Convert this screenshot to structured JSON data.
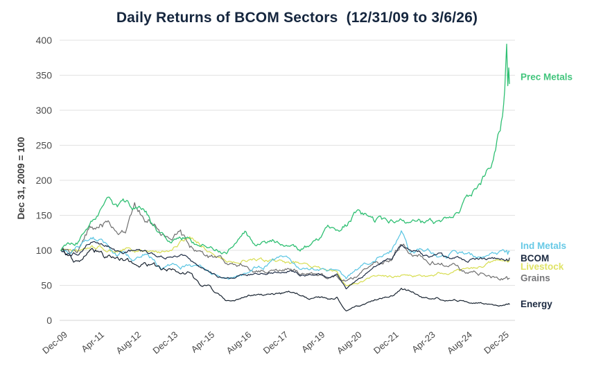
{
  "chart": {
    "title": "Daily Returns of BCOM Sectors  (12/31/09 to 3/6/26)",
    "ylabel": "Dec 31, 2009 = 100"
  },
  "chart_data": {
    "type": "line",
    "title": "Daily Returns of BCOM Sectors  (12/31/09 to 3/6/26)",
    "xlabel": "",
    "ylabel": "Dec 31, 2009 = 100",
    "ylim": [
      0,
      400
    ],
    "yticks": [
      0,
      50,
      100,
      150,
      200,
      250,
      300,
      350,
      400
    ],
    "grid": "horizontal-only",
    "legend_position": "right-edge-annotations",
    "xticklabels": [
      "Dec-09",
      "Apr-11",
      "Aug-12",
      "Dec-13",
      "Apr-15",
      "Aug-16",
      "Dec-17",
      "Apr-19",
      "Aug-20",
      "Dec-21",
      "Apr-23",
      "Aug-24",
      "Dec-25"
    ],
    "xtick_months": [
      0,
      16,
      32,
      48,
      64,
      80,
      96,
      112,
      128,
      144,
      160,
      176,
      192
    ],
    "x_months_since_dec09": [
      0,
      4,
      8,
      12,
      16,
      20,
      24,
      28,
      32,
      36,
      40,
      44,
      48,
      52,
      56,
      60,
      64,
      68,
      72,
      76,
      80,
      84,
      88,
      92,
      96,
      100,
      104,
      108,
      112,
      116,
      120,
      124,
      128,
      132,
      136,
      140,
      144,
      148,
      152,
      156,
      160,
      164,
      168,
      172,
      176,
      180,
      184,
      188,
      192,
      193,
      193.8,
      194.3,
      194.7,
      195
    ],
    "series": [
      {
        "id": "livestock",
        "name": "Livestock",
        "color": "#d7dd4f",
        "volatility": 0.018,
        "width": 1.2,
        "values": [
          100,
          102,
          98,
          103,
          105,
          100,
          99,
          102,
          97,
          99,
          96,
          98,
          103,
          110,
          117,
          112,
          100,
          92,
          85,
          84,
          87,
          86,
          84,
          85,
          83,
          81,
          82,
          78,
          75,
          70,
          72,
          50,
          52,
          56,
          62,
          64,
          62,
          65,
          64,
          62,
          63,
          67,
          64,
          70,
          72,
          75,
          78,
          84,
          88,
          87,
          88,
          86,
          87,
          86
        ]
      },
      {
        "id": "grains",
        "name": "Grains",
        "color": "#6e6e6e",
        "volatility": 0.026,
        "width": 1.2,
        "values": [
          100,
          92,
          100,
          130,
          136,
          138,
          124,
          122,
          163,
          150,
          138,
          122,
          115,
          127,
          100,
          98,
          92,
          88,
          78,
          76,
          82,
          70,
          72,
          70,
          70,
          74,
          66,
          66,
          64,
          62,
          66,
          58,
          62,
          74,
          84,
          82,
          90,
          112,
          100,
          96,
          88,
          82,
          78,
          76,
          68,
          67,
          66,
          61,
          60,
          60,
          61,
          59,
          60,
          60
        ]
      },
      {
        "id": "ind_metals",
        "name": "Ind Metals",
        "color": "#57c4e2",
        "volatility": 0.022,
        "width": 1.2,
        "values": [
          100,
          98,
          104,
          118,
          114,
          104,
          92,
          97,
          88,
          95,
          86,
          75,
          80,
          76,
          80,
          76,
          72,
          62,
          60,
          64,
          66,
          75,
          76,
          85,
          88,
          84,
          72,
          72,
          74,
          70,
          74,
          58,
          72,
          80,
          88,
          92,
          100,
          126,
          94,
          98,
          98,
          90,
          88,
          99,
          94,
          92,
          93,
          96,
          99,
          98,
          102,
          97,
          100,
          98
        ]
      },
      {
        "id": "bcom",
        "name": "BCOM",
        "color": "#1e2c45",
        "volatility": 0.016,
        "width": 1.2,
        "values": [
          100,
          94,
          97,
          110,
          114,
          106,
          99,
          97,
          100,
          97,
          94,
          90,
          90,
          93,
          88,
          76,
          72,
          64,
          60,
          62,
          66,
          67,
          66,
          68,
          70,
          71,
          65,
          64,
          66,
          61,
          64,
          45,
          55,
          64,
          78,
          84,
          90,
          108,
          98,
          96,
          90,
          93,
          88,
          90,
          86,
          87,
          88,
          87,
          90,
          89,
          91,
          88,
          89,
          89
        ]
      },
      {
        "id": "energy",
        "name": "Energy",
        "color": "#17222f",
        "volatility": 0.03,
        "width": 1.2,
        "values": [
          100,
          88,
          82,
          92,
          97,
          87,
          88,
          84,
          78,
          78,
          80,
          72,
          75,
          72,
          70,
          50,
          48,
          38,
          28,
          30,
          33,
          38,
          36,
          38,
          38,
          40,
          36,
          30,
          34,
          30,
          33,
          14,
          20,
          22,
          28,
          32,
          36,
          43,
          42,
          35,
          30,
          32,
          28,
          29,
          27,
          26,
          25,
          23,
          22,
          22,
          23,
          22,
          23,
          23
        ]
      },
      {
        "id": "prec_metals",
        "name": "Prec Metals",
        "color": "#2ebf72",
        "volatility": 0.02,
        "width": 1.3,
        "values": [
          100,
          108,
          112,
          132,
          148,
          185,
          160,
          165,
          160,
          164,
          135,
          122,
          112,
          120,
          118,
          108,
          108,
          100,
          95,
          112,
          124,
          108,
          112,
          114,
          112,
          110,
          100,
          107,
          112,
          128,
          130,
          138,
          155,
          148,
          140,
          142,
          143,
          152,
          135,
          138,
          140,
          137,
          142,
          152,
          168,
          185,
          205,
          230,
          288,
          320,
          376,
          318,
          348,
          338
        ]
      }
    ],
    "annotations": [
      {
        "id": "prec_metals",
        "text": "Prec Metals",
        "at_value": 348,
        "color": "#43c57d",
        "bold": false
      },
      {
        "id": "ind_metals",
        "text": "Ind Metals",
        "at_value": 107,
        "color": "#67c9e6",
        "bold": false
      },
      {
        "id": "bcom",
        "text": "BCOM",
        "at_value": 89,
        "color": "#1b2940",
        "bold": true
      },
      {
        "id": "livestock",
        "text": "Livestock",
        "at_value": 77,
        "color": "#dfe366",
        "bold": false
      },
      {
        "id": "grains",
        "text": "Grains",
        "at_value": 61,
        "color": "#757578",
        "bold": false
      },
      {
        "id": "energy",
        "text": "Energy",
        "at_value": 24,
        "color": "#1b2940",
        "bold": true
      }
    ],
    "colors": {
      "background": "#ffffff",
      "title": "#15263e",
      "gridline": "#e2e2e2",
      "baseline": "#d4d4d4",
      "tick_text": "#4c4c4c"
    }
  }
}
